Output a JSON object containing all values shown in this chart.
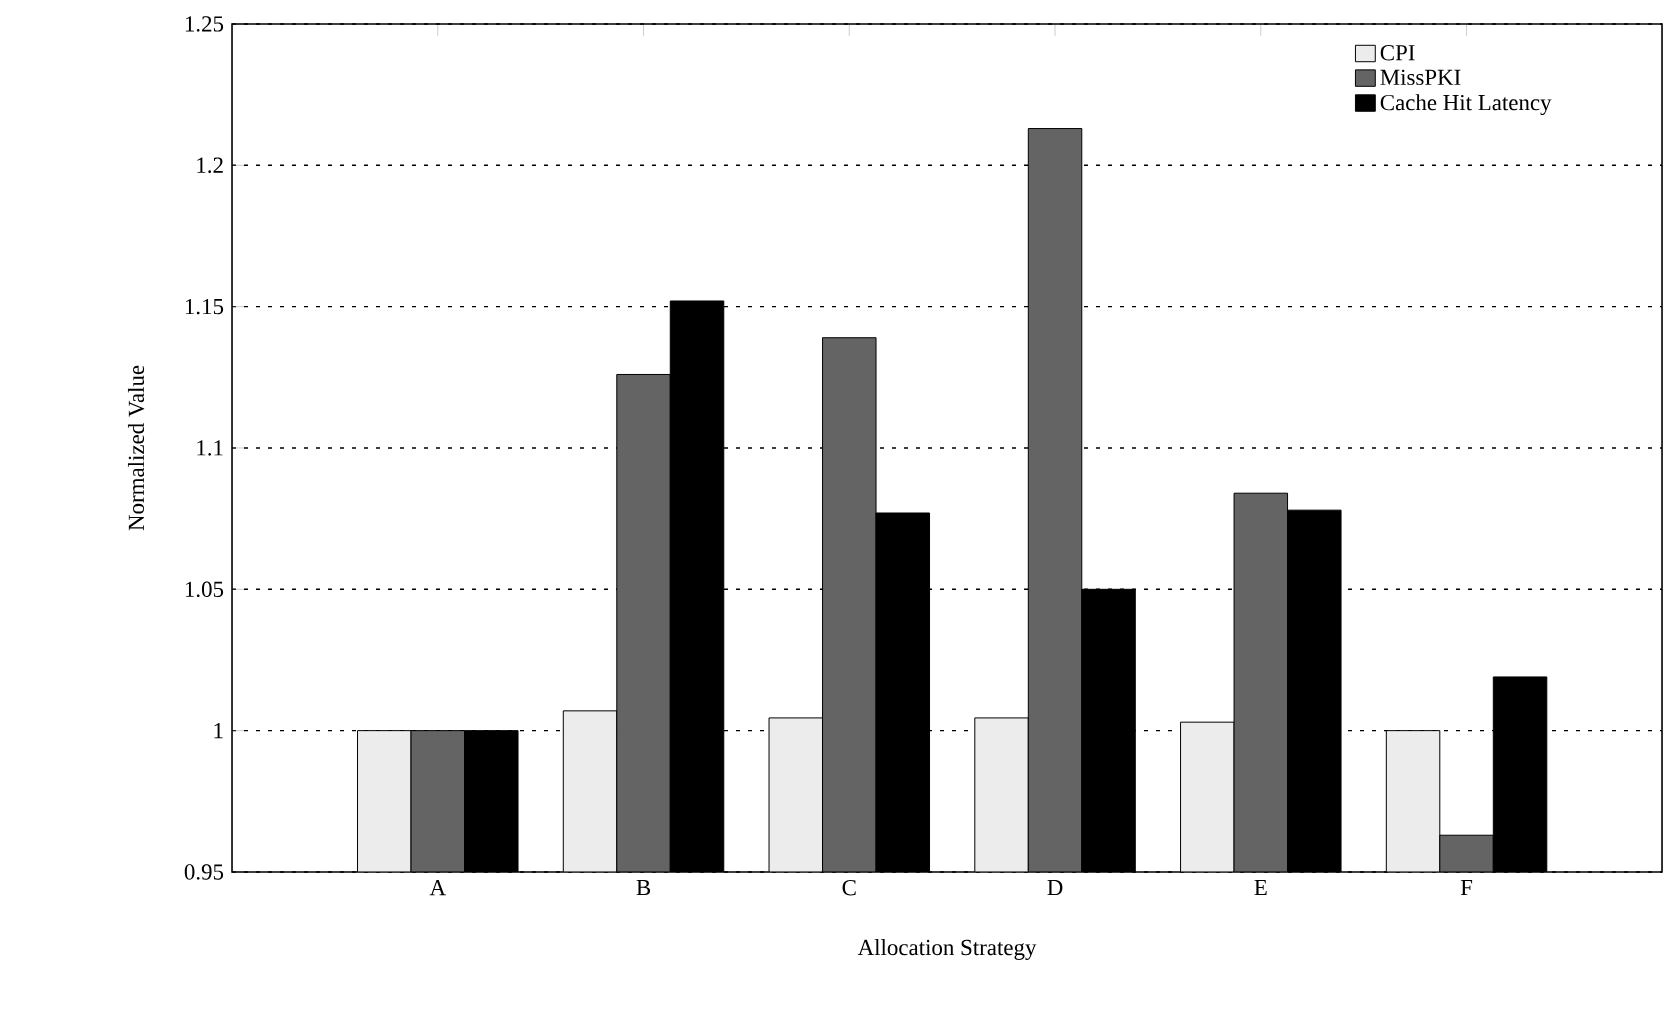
{
  "chart_data": {
    "type": "bar",
    "xlabel": "Allocation Strategy",
    "ylabel": "Normalized Value",
    "categories": [
      "A",
      "B",
      "C",
      "D",
      "E",
      "F"
    ],
    "series": [
      {
        "name": "CPI",
        "color": "#ececec",
        "values": [
          1.0,
          1.007,
          1.0045,
          1.0045,
          1.003,
          1.0
        ]
      },
      {
        "name": "MissPKI",
        "color": "#646464",
        "values": [
          1.0,
          1.126,
          1.139,
          1.213,
          1.084,
          0.963
        ]
      },
      {
        "name": "Cache Hit Latency",
        "color": "#000000",
        "values": [
          1.0,
          1.152,
          1.077,
          1.05,
          1.078,
          1.019
        ]
      }
    ],
    "ylim": [
      0.95,
      1.25
    ],
    "yticks": [
      0.95,
      1,
      1.05,
      1.1,
      1.15,
      1.2,
      1.25
    ],
    "grid": "y",
    "legend": "top right"
  }
}
